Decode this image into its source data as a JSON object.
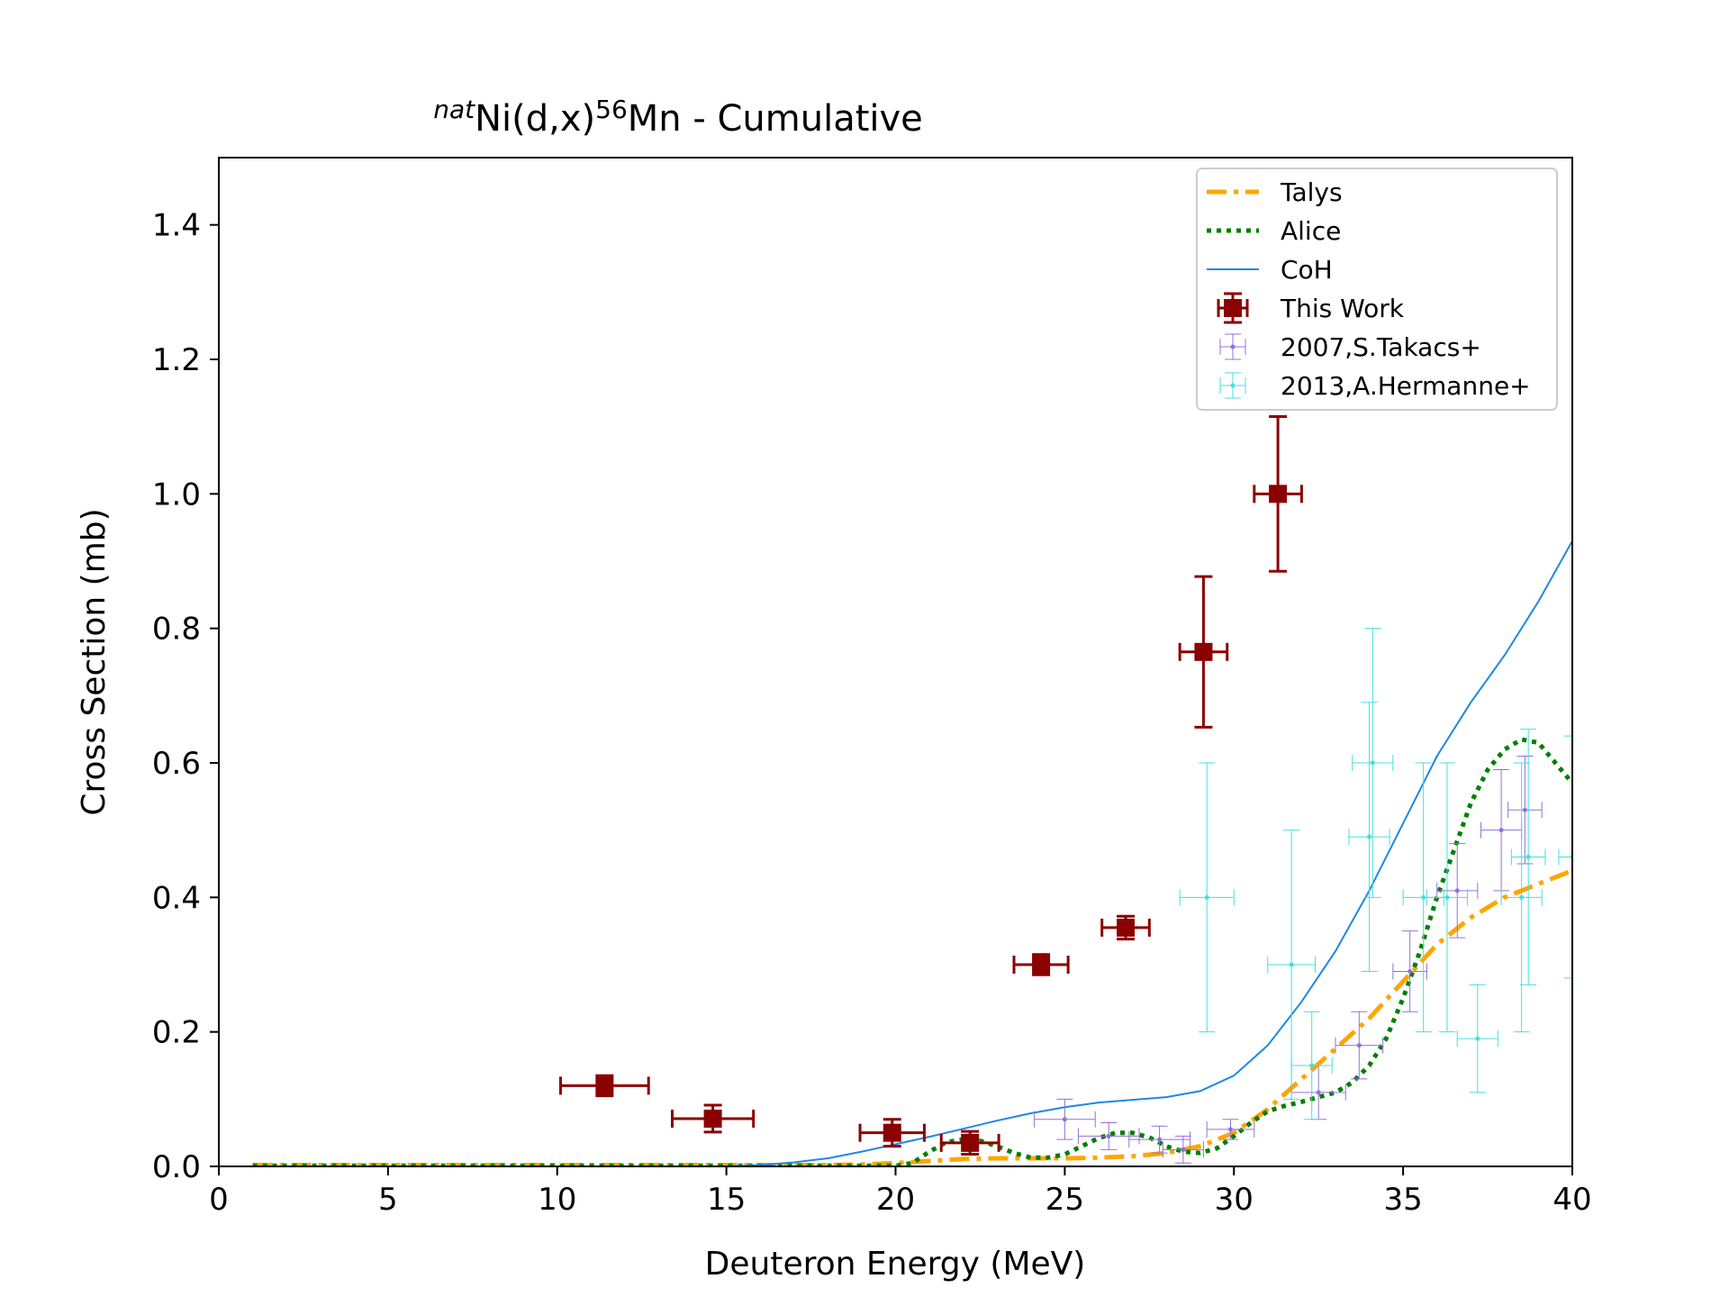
{
  "chart_data": {
    "type": "scatter",
    "title": {
      "prefix_sup": "nat",
      "main1": "Ni(d,x)",
      "mid_sup": "56",
      "main2": "Mn - Cumulative"
    },
    "xlabel": "Deuteron Energy (MeV)",
    "ylabel": "Cross Section (mb)",
    "xlim": [
      0,
      40
    ],
    "ylim": [
      0,
      1.5
    ],
    "xticks": [
      "0",
      "5",
      "10",
      "15",
      "20",
      "25",
      "30",
      "35",
      "40"
    ],
    "yticks": [
      "0.0",
      "0.2",
      "0.4",
      "0.6",
      "0.8",
      "1.0",
      "1.2",
      "1.4"
    ],
    "grid": false,
    "legend_position": "top-right",
    "legend": [
      "Talys",
      "Alice",
      "CoH",
      "This Work",
      "2007,S.Takacs+",
      "2013,A.Hermanne+"
    ],
    "colors": {
      "talys": "#ffa500",
      "alice": "#007f00",
      "coh": "#1e88e5",
      "this_work": "#8b0000",
      "takacs": "#9370db",
      "hermanne": "#40e0e0"
    },
    "series_curves": [
      {
        "name": "Talys",
        "style": "dashdot",
        "x": [
          1,
          18,
          19,
          20,
          21,
          22,
          23,
          24,
          25,
          26,
          27,
          28,
          29,
          30,
          31,
          32,
          33,
          34,
          35,
          36,
          37,
          38,
          39,
          40
        ],
        "y": [
          0.002,
          0.002,
          0.003,
          0.005,
          0.008,
          0.011,
          0.012,
          0.012,
          0.012,
          0.013,
          0.015,
          0.02,
          0.03,
          0.05,
          0.085,
          0.13,
          0.175,
          0.22,
          0.275,
          0.33,
          0.37,
          0.4,
          0.42,
          0.44
        ]
      },
      {
        "name": "Alice",
        "style": "dotted",
        "x": [
          1,
          20,
          20.5,
          21,
          21.5,
          22,
          22.5,
          23,
          23.5,
          24,
          24.5,
          25,
          25.5,
          26,
          26.5,
          27,
          27.5,
          28,
          28.5,
          29,
          29.5,
          30,
          30.5,
          31,
          31.5,
          32,
          32.5,
          33,
          33.5,
          34,
          34.5,
          35,
          35.5,
          36,
          36.5,
          37,
          37.5,
          38,
          38.5,
          39,
          39.5,
          40
        ],
        "y": [
          0.001,
          0.001,
          0.005,
          0.022,
          0.036,
          0.04,
          0.038,
          0.03,
          0.02,
          0.013,
          0.013,
          0.018,
          0.03,
          0.042,
          0.05,
          0.05,
          0.043,
          0.03,
          0.022,
          0.02,
          0.027,
          0.045,
          0.065,
          0.082,
          0.09,
          0.096,
          0.103,
          0.11,
          0.125,
          0.15,
          0.19,
          0.25,
          0.32,
          0.4,
          0.47,
          0.54,
          0.59,
          0.62,
          0.635,
          0.63,
          0.6,
          0.57
        ]
      },
      {
        "name": "CoH",
        "style": "solid",
        "x": [
          1,
          15,
          16,
          17,
          18,
          19,
          20,
          21,
          22,
          23,
          24,
          25,
          26,
          27,
          28,
          29,
          30,
          31,
          32,
          33,
          34,
          35,
          36,
          37,
          38,
          39,
          40
        ],
        "y": [
          0.0,
          0.0,
          0.002,
          0.006,
          0.012,
          0.022,
          0.033,
          0.044,
          0.056,
          0.068,
          0.079,
          0.088,
          0.095,
          0.099,
          0.103,
          0.112,
          0.135,
          0.18,
          0.245,
          0.32,
          0.41,
          0.51,
          0.61,
          0.69,
          0.76,
          0.84,
          0.93
        ]
      }
    ],
    "series_points": [
      {
        "name": "This Work",
        "points": [
          {
            "x": 11.4,
            "y": 0.12,
            "xerr": 1.3,
            "yerr": 0.015
          },
          {
            "x": 14.6,
            "y": 0.071,
            "xerr": 1.2,
            "yerr": 0.02
          },
          {
            "x": 19.9,
            "y": 0.05,
            "xerr": 0.95,
            "yerr": 0.02
          },
          {
            "x": 22.2,
            "y": 0.035,
            "xerr": 0.85,
            "yerr": 0.017
          },
          {
            "x": 24.3,
            "y": 0.3,
            "xerr": 0.8,
            "yerr": 0.015
          },
          {
            "x": 26.8,
            "y": 0.355,
            "xerr": 0.7,
            "yerr": 0.017
          },
          {
            "x": 29.1,
            "y": 0.765,
            "xerr": 0.7,
            "yerr": 0.112
          },
          {
            "x": 31.3,
            "y": 1.0,
            "xerr": 0.7,
            "yerr": 0.115
          }
        ]
      },
      {
        "name": "2007,S.Takacs+",
        "points": [
          {
            "x": 25.0,
            "y": 0.07,
            "xerr": 0.9,
            "yerr": 0.03
          },
          {
            "x": 26.3,
            "y": 0.045,
            "xerr": 0.9,
            "yerr": 0.02
          },
          {
            "x": 27.8,
            "y": 0.04,
            "xerr": 0.9,
            "yerr": 0.02
          },
          {
            "x": 28.5,
            "y": 0.025,
            "xerr": 0.6,
            "yerr": 0.02
          },
          {
            "x": 29.9,
            "y": 0.055,
            "xerr": 0.7,
            "yerr": 0.015
          },
          {
            "x": 32.5,
            "y": 0.11,
            "xerr": 0.8,
            "yerr": 0.04
          },
          {
            "x": 33.7,
            "y": 0.18,
            "xerr": 0.7,
            "yerr": 0.05
          },
          {
            "x": 35.2,
            "y": 0.29,
            "xerr": 0.5,
            "yerr": 0.06
          },
          {
            "x": 36.6,
            "y": 0.41,
            "xerr": 0.6,
            "yerr": 0.07
          },
          {
            "x": 37.9,
            "y": 0.5,
            "xerr": 0.6,
            "yerr": 0.09
          },
          {
            "x": 38.6,
            "y": 0.53,
            "xerr": 0.5,
            "yerr": 0.08
          }
        ]
      },
      {
        "name": "2013,A.Hermanne+",
        "points": [
          {
            "x": 29.2,
            "y": 0.4,
            "xerr": 0.8,
            "yerr": 0.2
          },
          {
            "x": 31.7,
            "y": 0.3,
            "xerr": 0.7,
            "yerr": 0.2
          },
          {
            "x": 32.3,
            "y": 0.15,
            "xerr": 0.6,
            "yerr": 0.08
          },
          {
            "x": 34.0,
            "y": 0.49,
            "xerr": 0.6,
            "yerr": 0.2
          },
          {
            "x": 34.1,
            "y": 0.6,
            "xerr": 0.6,
            "yerr": 0.2
          },
          {
            "x": 35.6,
            "y": 0.4,
            "xerr": 0.6,
            "yerr": 0.2
          },
          {
            "x": 36.3,
            "y": 0.4,
            "xerr": 0.6,
            "yerr": 0.2
          },
          {
            "x": 37.2,
            "y": 0.19,
            "xerr": 0.6,
            "yerr": 0.08
          },
          {
            "x": 38.5,
            "y": 0.4,
            "xerr": 0.6,
            "yerr": 0.2
          },
          {
            "x": 38.7,
            "y": 0.46,
            "xerr": 0.5,
            "yerr": 0.19
          },
          {
            "x": 40.0,
            "y": 0.46,
            "xerr": 0.4,
            "yerr": 0.18
          }
        ]
      }
    ]
  }
}
